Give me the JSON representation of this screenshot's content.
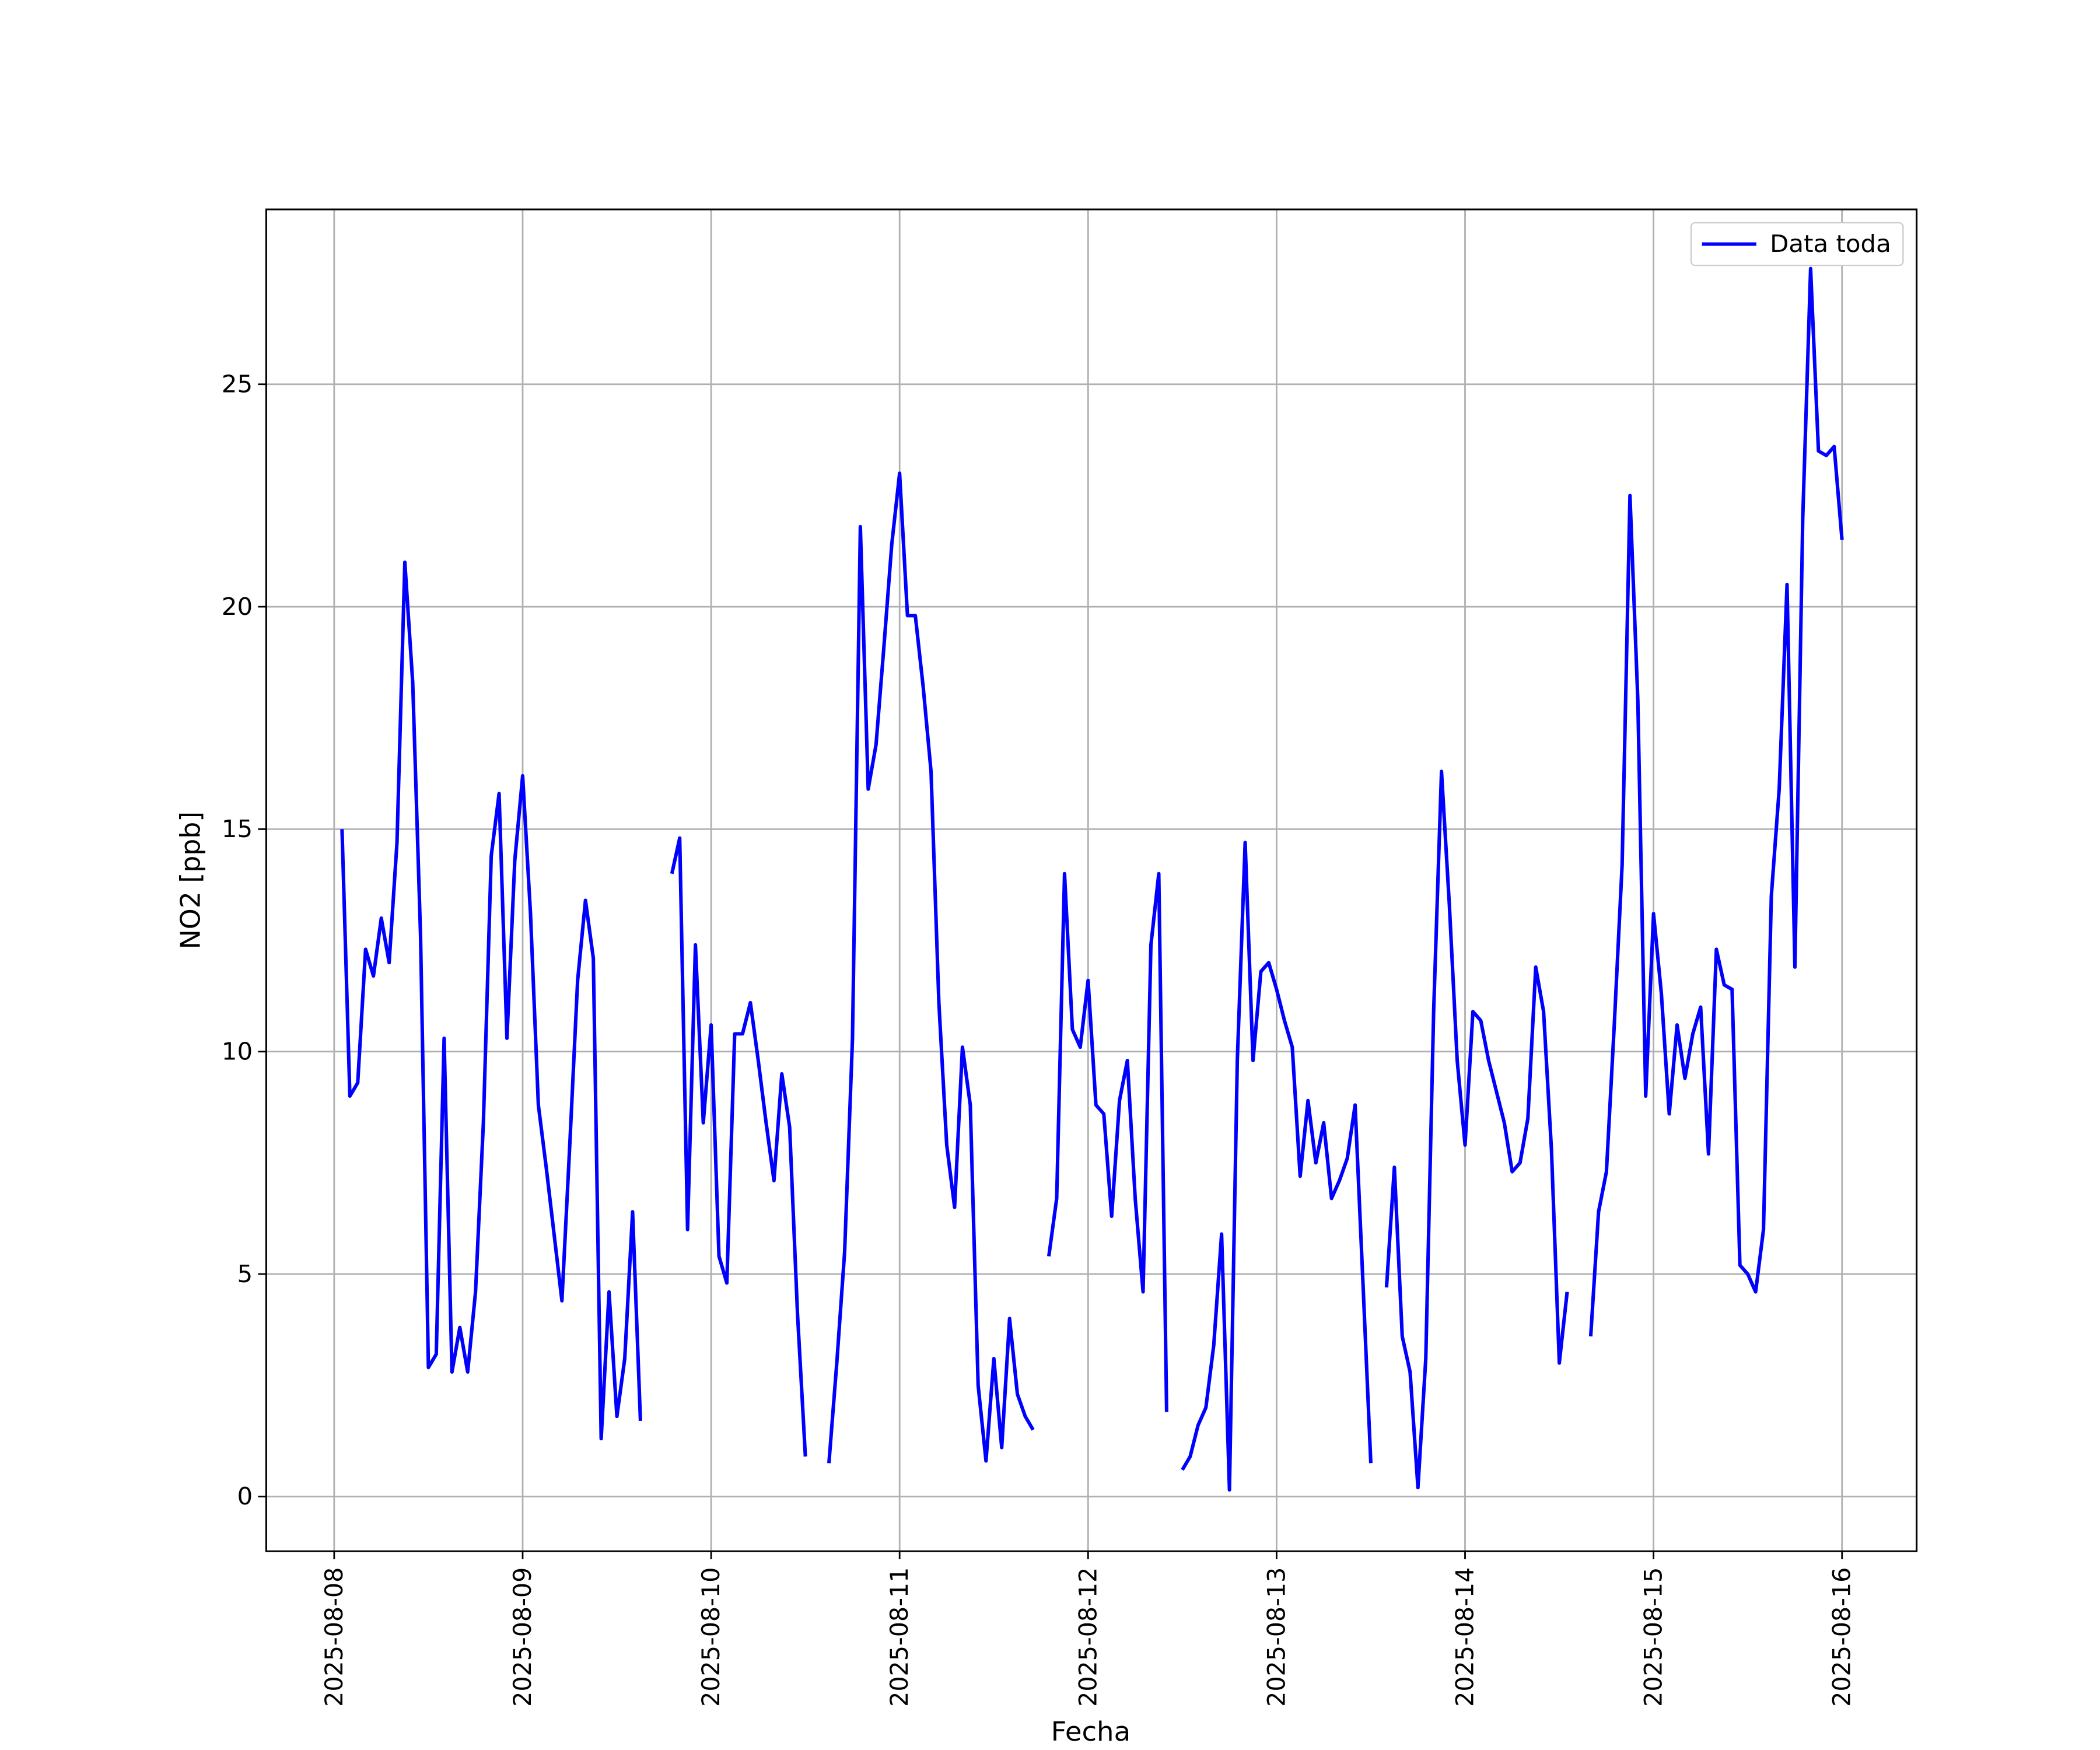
{
  "chart_data": {
    "type": "line",
    "xlabel": "Fecha",
    "ylabel": "NO2 [ppb]",
    "x": [
      "2025-08-08 01:00",
      "2025-08-08 02:00",
      "2025-08-08 03:00",
      "2025-08-08 04:00",
      "2025-08-08 05:00",
      "2025-08-08 06:00",
      "2025-08-08 07:00",
      "2025-08-08 08:00",
      "2025-08-08 09:00",
      "2025-08-08 10:00",
      "2025-08-08 11:00",
      "2025-08-08 12:00",
      "2025-08-08 13:00",
      "2025-08-08 14:00",
      "2025-08-08 15:00",
      "2025-08-08 16:00",
      "2025-08-08 17:00",
      "2025-08-08 18:00",
      "2025-08-08 19:00",
      "2025-08-08 20:00",
      "2025-08-08 21:00",
      "2025-08-08 22:00",
      "2025-08-08 23:00",
      "2025-08-09 00:00",
      "2025-08-09 01:00",
      "2025-08-09 02:00",
      "2025-08-09 03:00",
      "2025-08-09 04:00",
      "2025-08-09 05:00",
      "2025-08-09 06:00",
      "2025-08-09 07:00",
      "2025-08-09 08:00",
      "2025-08-09 09:00",
      "2025-08-09 10:00",
      "2025-08-09 11:00",
      "2025-08-09 12:00",
      "2025-08-09 13:00",
      "2025-08-09 14:00",
      "2025-08-09 15:00",
      "2025-08-09 16:00",
      "2025-08-09 17:00",
      "2025-08-09 18:00",
      "2025-08-09 19:00",
      "2025-08-09 20:00",
      "2025-08-09 21:00",
      "2025-08-09 22:00",
      "2025-08-09 23:00",
      "2025-08-10 00:00",
      "2025-08-10 01:00",
      "2025-08-10 02:00",
      "2025-08-10 03:00",
      "2025-08-10 04:00",
      "2025-08-10 05:00",
      "2025-08-10 06:00",
      "2025-08-10 07:00",
      "2025-08-10 08:00",
      "2025-08-10 09:00",
      "2025-08-10 10:00",
      "2025-08-10 11:00",
      "2025-08-10 12:00",
      "2025-08-10 13:00",
      "2025-08-10 14:00",
      "2025-08-10 15:00",
      "2025-08-10 16:00",
      "2025-08-10 17:00",
      "2025-08-10 18:00",
      "2025-08-10 19:00",
      "2025-08-10 20:00",
      "2025-08-10 21:00",
      "2025-08-10 22:00",
      "2025-08-10 23:00",
      "2025-08-11 00:00",
      "2025-08-11 01:00",
      "2025-08-11 02:00",
      "2025-08-11 03:00",
      "2025-08-11 04:00",
      "2025-08-11 05:00",
      "2025-08-11 06:00",
      "2025-08-11 07:00",
      "2025-08-11 08:00",
      "2025-08-11 09:00",
      "2025-08-11 10:00",
      "2025-08-11 11:00",
      "2025-08-11 12:00",
      "2025-08-11 13:00",
      "2025-08-11 14:00",
      "2025-08-11 15:00",
      "2025-08-11 16:00",
      "2025-08-11 17:00",
      "2025-08-11 18:00",
      "2025-08-11 19:00",
      "2025-08-11 20:00",
      "2025-08-11 21:00",
      "2025-08-11 22:00",
      "2025-08-11 23:00",
      "2025-08-12 00:00",
      "2025-08-12 01:00",
      "2025-08-12 02:00",
      "2025-08-12 03:00",
      "2025-08-12 04:00",
      "2025-08-12 05:00",
      "2025-08-12 06:00",
      "2025-08-12 07:00",
      "2025-08-12 08:00",
      "2025-08-12 09:00",
      "2025-08-12 10:00",
      "2025-08-12 11:00",
      "2025-08-12 12:00",
      "2025-08-12 13:00",
      "2025-08-12 14:00",
      "2025-08-12 15:00",
      "2025-08-12 16:00",
      "2025-08-12 17:00",
      "2025-08-12 18:00",
      "2025-08-12 19:00",
      "2025-08-12 20:00",
      "2025-08-12 21:00",
      "2025-08-12 22:00",
      "2025-08-12 23:00",
      "2025-08-13 00:00",
      "2025-08-13 01:00",
      "2025-08-13 02:00",
      "2025-08-13 03:00",
      "2025-08-13 04:00",
      "2025-08-13 05:00",
      "2025-08-13 06:00",
      "2025-08-13 07:00",
      "2025-08-13 08:00",
      "2025-08-13 09:00",
      "2025-08-13 10:00",
      "2025-08-13 11:00",
      "2025-08-13 12:00",
      "2025-08-13 13:00",
      "2025-08-13 14:00",
      "2025-08-13 15:00",
      "2025-08-13 16:00",
      "2025-08-13 17:00",
      "2025-08-13 18:00",
      "2025-08-13 19:00",
      "2025-08-13 20:00",
      "2025-08-13 21:00",
      "2025-08-13 22:00",
      "2025-08-13 23:00",
      "2025-08-14 00:00",
      "2025-08-14 01:00",
      "2025-08-14 02:00",
      "2025-08-14 03:00",
      "2025-08-14 04:00",
      "2025-08-14 05:00",
      "2025-08-14 06:00",
      "2025-08-14 07:00",
      "2025-08-14 08:00",
      "2025-08-14 09:00",
      "2025-08-14 10:00",
      "2025-08-14 11:00",
      "2025-08-14 12:00",
      "2025-08-14 13:00",
      "2025-08-14 14:00",
      "2025-08-14 15:00",
      "2025-08-14 16:00",
      "2025-08-14 17:00",
      "2025-08-14 18:00",
      "2025-08-14 19:00",
      "2025-08-14 20:00",
      "2025-08-14 21:00",
      "2025-08-14 22:00",
      "2025-08-14 23:00",
      "2025-08-15 00:00",
      "2025-08-15 01:00",
      "2025-08-15 02:00",
      "2025-08-15 03:00",
      "2025-08-15 04:00",
      "2025-08-15 05:00",
      "2025-08-15 06:00",
      "2025-08-15 07:00",
      "2025-08-15 08:00",
      "2025-08-15 09:00",
      "2025-08-15 10:00",
      "2025-08-15 11:00",
      "2025-08-15 12:00",
      "2025-08-15 13:00",
      "2025-08-15 14:00",
      "2025-08-15 15:00",
      "2025-08-15 16:00",
      "2025-08-15 17:00",
      "2025-08-15 18:00",
      "2025-08-15 19:00",
      "2025-08-15 20:00",
      "2025-08-15 21:00",
      "2025-08-15 22:00",
      "2025-08-15 23:00",
      "2025-08-16 00:00"
    ],
    "series": [
      {
        "name": "Data toda",
        "color": "#0000ff",
        "values": [
          15.0,
          9.0,
          9.3,
          12.3,
          11.7,
          13.0,
          12.0,
          14.7,
          21.0,
          18.3,
          12.6,
          2.9,
          3.2,
          10.3,
          2.8,
          3.8,
          2.8,
          4.6,
          8.4,
          14.4,
          15.8,
          10.3,
          14.3,
          16.2,
          13.1,
          8.8,
          7.4,
          5.9,
          4.4,
          7.9,
          11.6,
          13.4,
          12.1,
          1.3,
          4.6,
          1.8,
          3.1,
          6.4,
          1.7,
          null,
          null,
          null,
          14.0,
          14.8,
          6.0,
          12.4,
          8.4,
          10.6,
          5.4,
          4.8,
          10.4,
          10.4,
          11.1,
          9.8,
          8.4,
          7.1,
          9.5,
          8.3,
          4.1,
          0.9,
          null,
          null,
          0.75,
          3.0,
          5.5,
          10.3,
          21.8,
          15.9,
          16.9,
          19.1,
          21.4,
          23.0,
          19.8,
          19.8,
          18.2,
          16.3,
          11.1,
          7.9,
          6.5,
          10.1,
          8.8,
          2.5,
          0.8,
          3.1,
          1.1,
          4.0,
          2.3,
          1.8,
          1.5,
          null,
          5.4,
          6.7,
          14.0,
          10.5,
          10.1,
          11.6,
          8.8,
          8.6,
          6.3,
          8.9,
          9.8,
          6.7,
          4.6,
          12.4,
          14.0,
          1.9,
          null,
          0.6,
          0.9,
          1.6,
          2.0,
          3.4,
          5.9,
          0.15,
          9.8,
          14.7,
          9.8,
          11.8,
          12.0,
          11.4,
          10.7,
          10.1,
          7.2,
          8.9,
          7.5,
          8.4,
          6.7,
          7.1,
          7.6,
          8.8,
          4.8,
          0.75,
          null,
          4.7,
          7.4,
          3.6,
          2.8,
          0.2,
          3.1,
          10.9,
          16.3,
          13.3,
          9.8,
          7.9,
          10.9,
          10.7,
          9.8,
          9.1,
          8.4,
          7.3,
          7.5,
          8.5,
          11.9,
          10.9,
          7.8,
          3.0,
          4.6,
          null,
          null,
          3.6,
          6.4,
          7.3,
          10.6,
          14.2,
          22.5,
          17.9,
          9.0,
          13.1,
          11.3,
          8.6,
          10.6,
          9.4,
          10.4,
          11.0,
          7.7,
          12.3,
          11.5,
          11.4,
          5.2,
          5.0,
          4.6,
          6.0,
          13.5,
          15.9,
          20.5,
          11.9,
          22.0,
          27.6,
          23.5,
          23.4,
          23.6,
          21.5
        ]
      }
    ],
    "xlim": [
      "2025-08-07 15:21",
      "2025-08-16 09:30"
    ],
    "xticks": [
      "2025-08-08",
      "2025-08-09",
      "2025-08-10",
      "2025-08-11",
      "2025-08-12",
      "2025-08-13",
      "2025-08-14",
      "2025-08-15",
      "2025-08-16"
    ],
    "ylim": [
      -1.23,
      28.93
    ],
    "yticks": [
      0,
      5,
      10,
      15,
      20,
      25
    ],
    "grid": true,
    "legend": "upper right"
  }
}
